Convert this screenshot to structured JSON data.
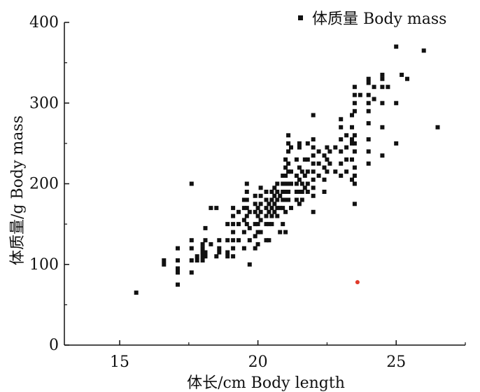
{
  "chart_data": {
    "type": "scatter",
    "title": "",
    "xlabel": "体长/cm Body length",
    "ylabel": "体质量/g Body mass",
    "xlim": [
      13,
      27.5
    ],
    "ylim": [
      0,
      400
    ],
    "xticks": [
      15,
      20,
      25
    ],
    "yticks": [
      0,
      100,
      200,
      300,
      400
    ],
    "grid": false,
    "legend_position": "top-right",
    "series": [
      {
        "name": "体质量 Body mass",
        "color": "#111111",
        "marker": "square",
        "points": [
          [
            15.6,
            65
          ],
          [
            16.6,
            100
          ],
          [
            16.6,
            105
          ],
          [
            17.1,
            75
          ],
          [
            17.1,
            90
          ],
          [
            17.1,
            95
          ],
          [
            17.1,
            105
          ],
          [
            17.1,
            120
          ],
          [
            17.6,
            90
          ],
          [
            17.6,
            105
          ],
          [
            17.6,
            120
          ],
          [
            17.6,
            130
          ],
          [
            17.6,
            200
          ],
          [
            17.8,
            105
          ],
          [
            17.8,
            110
          ],
          [
            18.0,
            105
          ],
          [
            18.0,
            110
          ],
          [
            18.0,
            115
          ],
          [
            18.0,
            120
          ],
          [
            18.0,
            125
          ],
          [
            18.1,
            130
          ],
          [
            18.1,
            145
          ],
          [
            18.1,
            110
          ],
          [
            18.1,
            115
          ],
          [
            18.3,
            125
          ],
          [
            18.3,
            170
          ],
          [
            18.5,
            170
          ],
          [
            18.5,
            110
          ],
          [
            18.6,
            115
          ],
          [
            18.6,
            120
          ],
          [
            18.6,
            130
          ],
          [
            18.9,
            110
          ],
          [
            18.9,
            115
          ],
          [
            18.9,
            130
          ],
          [
            18.9,
            150
          ],
          [
            19.1,
            110
          ],
          [
            19.1,
            120
          ],
          [
            19.1,
            130
          ],
          [
            19.1,
            140
          ],
          [
            19.1,
            150
          ],
          [
            19.1,
            160
          ],
          [
            19.1,
            170
          ],
          [
            19.3,
            130
          ],
          [
            19.3,
            150
          ],
          [
            19.3,
            165
          ],
          [
            19.5,
            120
          ],
          [
            19.5,
            140
          ],
          [
            19.5,
            155
          ],
          [
            19.5,
            170
          ],
          [
            19.5,
            180
          ],
          [
            19.6,
            150
          ],
          [
            19.6,
            160
          ],
          [
            19.6,
            170
          ],
          [
            19.6,
            180
          ],
          [
            19.6,
            190
          ],
          [
            19.6,
            200
          ],
          [
            19.7,
            100
          ],
          [
            19.7,
            130
          ],
          [
            19.7,
            145
          ],
          [
            19.7,
            165
          ],
          [
            19.9,
            120
          ],
          [
            19.9,
            135
          ],
          [
            19.9,
            150
          ],
          [
            19.9,
            165
          ],
          [
            19.9,
            175
          ],
          [
            19.9,
            185
          ],
          [
            20.0,
            125
          ],
          [
            20.0,
            140
          ],
          [
            20.0,
            150
          ],
          [
            20.0,
            160
          ],
          [
            20.0,
            170
          ],
          [
            20.1,
            140
          ],
          [
            20.1,
            155
          ],
          [
            20.1,
            165
          ],
          [
            20.1,
            175
          ],
          [
            20.1,
            185
          ],
          [
            20.1,
            195
          ],
          [
            20.3,
            130
          ],
          [
            20.3,
            150
          ],
          [
            20.3,
            160
          ],
          [
            20.3,
            170
          ],
          [
            20.3,
            180
          ],
          [
            20.3,
            190
          ],
          [
            20.4,
            130
          ],
          [
            20.4,
            150
          ],
          [
            20.4,
            165
          ],
          [
            20.4,
            175
          ],
          [
            20.5,
            150
          ],
          [
            20.5,
            160
          ],
          [
            20.5,
            170
          ],
          [
            20.5,
            180
          ],
          [
            20.5,
            190
          ],
          [
            20.6,
            165
          ],
          [
            20.6,
            175
          ],
          [
            20.6,
            185
          ],
          [
            20.6,
            195
          ],
          [
            20.7,
            160
          ],
          [
            20.7,
            170
          ],
          [
            20.7,
            180
          ],
          [
            20.7,
            190
          ],
          [
            20.7,
            200
          ],
          [
            20.8,
            140
          ],
          [
            20.8,
            170
          ],
          [
            20.8,
            185
          ],
          [
            20.9,
            150
          ],
          [
            20.9,
            170
          ],
          [
            20.9,
            180
          ],
          [
            20.9,
            190
          ],
          [
            20.9,
            200
          ],
          [
            20.9,
            210
          ],
          [
            21.0,
            140
          ],
          [
            21.0,
            165
          ],
          [
            21.0,
            180
          ],
          [
            21.0,
            190
          ],
          [
            21.0,
            200
          ],
          [
            21.0,
            210
          ],
          [
            21.0,
            220
          ],
          [
            21.0,
            230
          ],
          [
            21.1,
            180
          ],
          [
            21.1,
            190
          ],
          [
            21.1,
            200
          ],
          [
            21.1,
            215
          ],
          [
            21.1,
            225
          ],
          [
            21.1,
            240
          ],
          [
            21.1,
            250
          ],
          [
            21.1,
            260
          ],
          [
            21.2,
            170
          ],
          [
            21.2,
            200
          ],
          [
            21.2,
            215
          ],
          [
            21.2,
            245
          ],
          [
            21.4,
            180
          ],
          [
            21.4,
            190
          ],
          [
            21.4,
            200
          ],
          [
            21.4,
            210
          ],
          [
            21.4,
            230
          ],
          [
            21.5,
            175
          ],
          [
            21.5,
            190
          ],
          [
            21.5,
            205
          ],
          [
            21.5,
            220
          ],
          [
            21.5,
            245
          ],
          [
            21.5,
            250
          ],
          [
            21.6,
            180
          ],
          [
            21.6,
            190
          ],
          [
            21.6,
            200
          ],
          [
            21.6,
            215
          ],
          [
            21.7,
            195
          ],
          [
            21.7,
            210
          ],
          [
            21.7,
            230
          ],
          [
            21.8,
            190
          ],
          [
            21.8,
            200
          ],
          [
            21.8,
            215
          ],
          [
            21.8,
            230
          ],
          [
            21.8,
            250
          ],
          [
            22.0,
            165
          ],
          [
            22.0,
            185
          ],
          [
            22.0,
            195
          ],
          [
            22.0,
            205
          ],
          [
            22.0,
            215
          ],
          [
            22.0,
            225
          ],
          [
            22.0,
            235
          ],
          [
            22.0,
            245
          ],
          [
            22.0,
            255
          ],
          [
            22.0,
            285
          ],
          [
            22.2,
            210
          ],
          [
            22.2,
            225
          ],
          [
            22.2,
            240
          ],
          [
            22.4,
            190
          ],
          [
            22.4,
            205
          ],
          [
            22.4,
            220
          ],
          [
            22.4,
            235
          ],
          [
            22.5,
            215
          ],
          [
            22.5,
            230
          ],
          [
            22.5,
            245
          ],
          [
            22.6,
            225
          ],
          [
            22.6,
            240
          ],
          [
            22.8,
            215
          ],
          [
            22.8,
            245
          ],
          [
            23.0,
            210
          ],
          [
            23.0,
            225
          ],
          [
            23.0,
            240
          ],
          [
            23.0,
            255
          ],
          [
            23.0,
            270
          ],
          [
            23.0,
            280
          ],
          [
            23.2,
            215
          ],
          [
            23.2,
            230
          ],
          [
            23.2,
            245
          ],
          [
            23.2,
            260
          ],
          [
            23.4,
            205
          ],
          [
            23.4,
            230
          ],
          [
            23.4,
            250
          ],
          [
            23.4,
            255
          ],
          [
            23.4,
            270
          ],
          [
            23.4,
            285
          ],
          [
            23.5,
            175
          ],
          [
            23.5,
            200
          ],
          [
            23.5,
            210
          ],
          [
            23.5,
            220
          ],
          [
            23.5,
            240
          ],
          [
            23.5,
            250
          ],
          [
            23.5,
            260
          ],
          [
            23.5,
            290
          ],
          [
            23.5,
            300
          ],
          [
            23.5,
            310
          ],
          [
            23.5,
            320
          ],
          [
            23.7,
            310
          ],
          [
            24.0,
            225
          ],
          [
            24.0,
            240
          ],
          [
            24.0,
            255
          ],
          [
            24.0,
            275
          ],
          [
            24.0,
            290
          ],
          [
            24.0,
            300
          ],
          [
            24.0,
            310
          ],
          [
            24.0,
            325
          ],
          [
            24.0,
            330
          ],
          [
            24.2,
            305
          ],
          [
            24.2,
            320
          ],
          [
            24.5,
            235
          ],
          [
            24.5,
            270
          ],
          [
            24.5,
            300
          ],
          [
            24.5,
            320
          ],
          [
            24.5,
            330
          ],
          [
            24.5,
            335
          ],
          [
            24.7,
            320
          ],
          [
            25.0,
            250
          ],
          [
            25.0,
            300
          ],
          [
            25.0,
            370
          ],
          [
            25.2,
            335
          ],
          [
            25.4,
            330
          ],
          [
            26.0,
            365
          ],
          [
            26.5,
            270
          ]
        ]
      }
    ],
    "highlight_points": [
      {
        "x": 23.6,
        "y": 78,
        "color": "#e03a2a"
      }
    ]
  }
}
